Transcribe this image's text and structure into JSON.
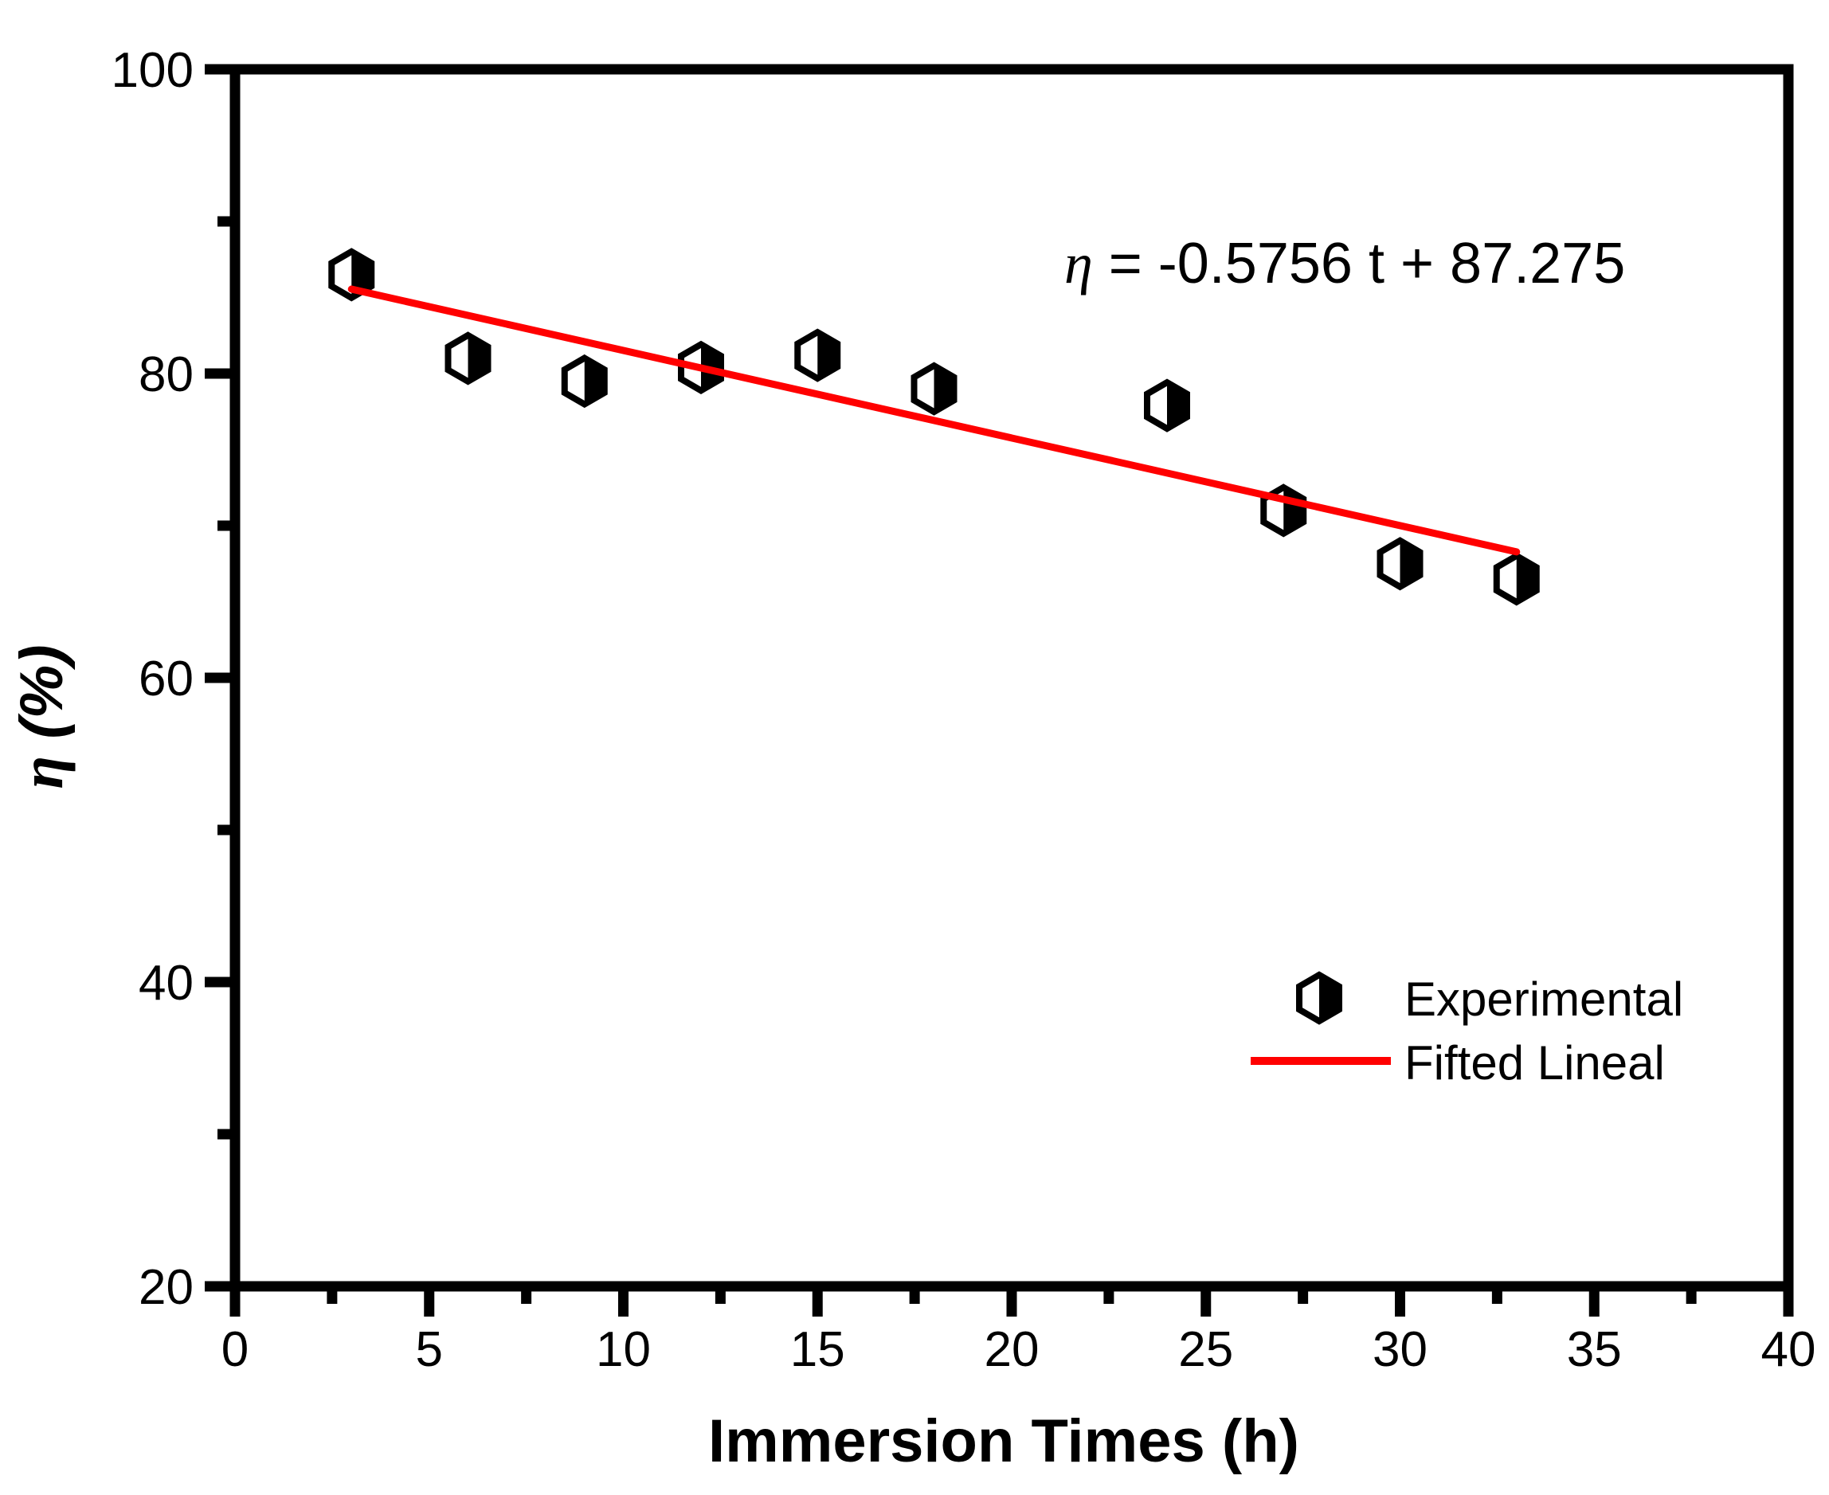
{
  "figure": {
    "background_color": "#FFFFFF",
    "frame_color": "#000000",
    "accent_color": "#FF0000"
  },
  "chart_data": {
    "type": "scatter",
    "title": "",
    "xlabel": "Immersion Times (h)",
    "ylabel": "η (%)",
    "ylabel_eta": "η",
    "ylabel_rest": " (%)",
    "xlim": [
      0,
      40
    ],
    "ylim": [
      20,
      100
    ],
    "x_major_ticks": [
      0,
      5,
      10,
      15,
      20,
      25,
      30,
      35,
      40
    ],
    "x_minor_ticks": [
      2.5,
      7.5,
      12.5,
      17.5,
      22.5,
      27.5,
      32.5,
      37.5
    ],
    "y_major_ticks": [
      20,
      40,
      60,
      80,
      100
    ],
    "y_minor_ticks": [
      30,
      50,
      70,
      90
    ],
    "grid": false,
    "legend_position": "right-middle",
    "series": [
      {
        "name": "Experimental",
        "type": "scatter",
        "marker": "half-filled-hexagon",
        "marker_color": "#000000",
        "points": [
          [
            3,
            86.5
          ],
          [
            6,
            81.0
          ],
          [
            9,
            79.5
          ],
          [
            12,
            80.4
          ],
          [
            15,
            81.2
          ],
          [
            18,
            79.0
          ],
          [
            24,
            77.9
          ],
          [
            27,
            71.0
          ],
          [
            30,
            67.5
          ],
          [
            33,
            66.5
          ]
        ]
      },
      {
        "name": "Fifted Lineal",
        "type": "line",
        "color": "#FF0000",
        "slope": -0.5756,
        "intercept": 87.275,
        "x_start": 3,
        "x_end": 33
      }
    ],
    "annotation": {
      "text": "η = -0.5756 t + 87.275",
      "eta": "η",
      "rest": " = -0.5756 t + 87.275"
    }
  }
}
